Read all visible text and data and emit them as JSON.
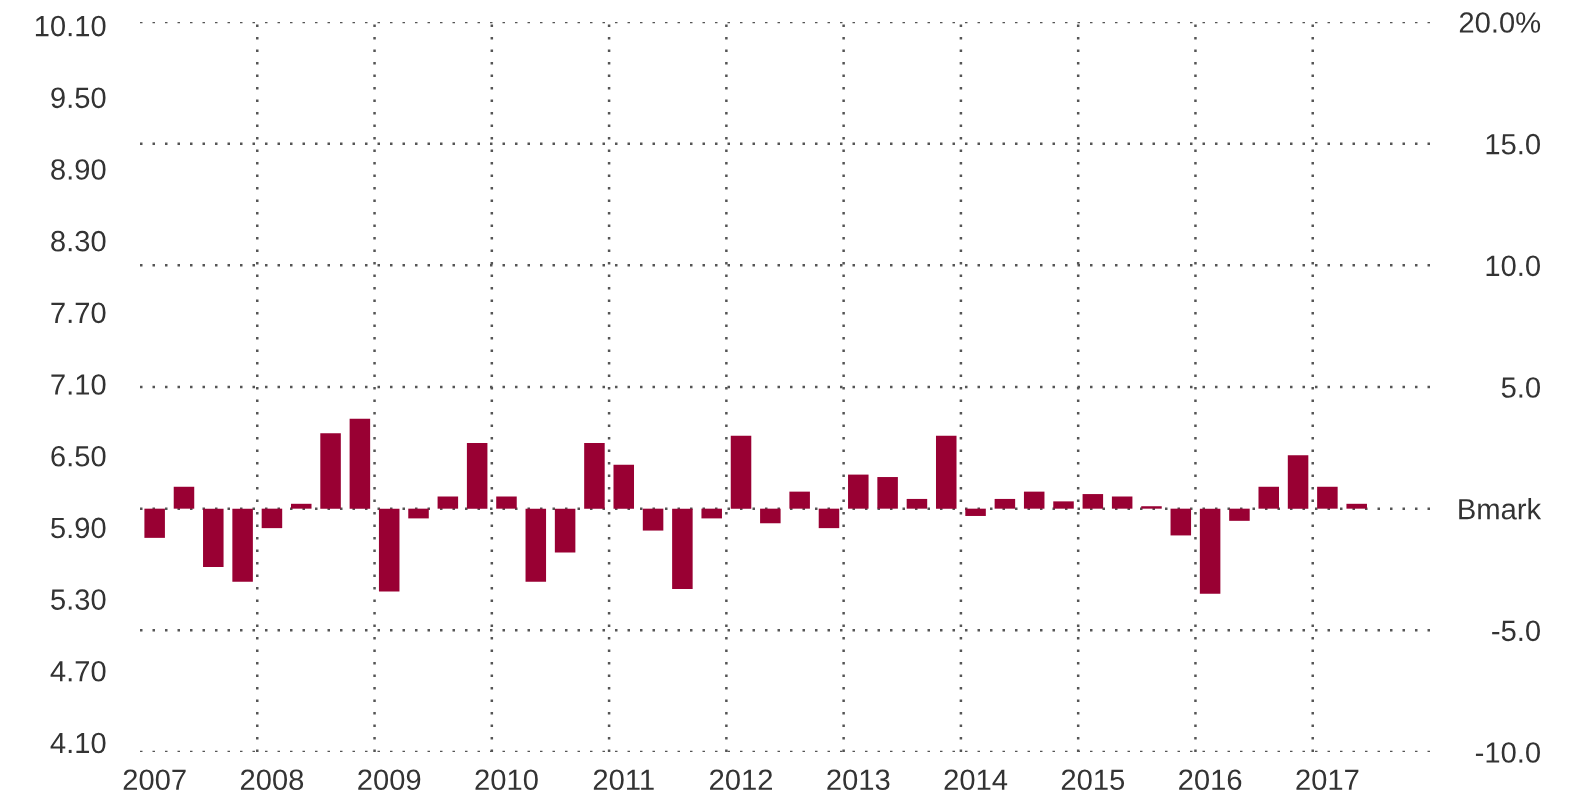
{
  "chart_data": {
    "type": "bar",
    "categories": [
      "2007",
      null,
      null,
      null,
      "2008",
      null,
      null,
      null,
      "2009",
      null,
      null,
      null,
      "2010",
      null,
      null,
      null,
      "2011",
      null,
      null,
      null,
      "2012",
      null,
      null,
      null,
      "2013",
      null,
      null,
      null,
      "2014",
      null,
      null,
      null,
      "2015",
      null,
      null,
      null,
      "2016",
      null,
      null,
      null,
      "2017",
      null
    ],
    "series": [
      {
        "color": "#990033",
        "axis": "y2",
        "values": [
          -1.2,
          0.9,
          -2.4,
          -3.0,
          -0.8,
          0.2,
          3.1,
          3.7,
          -3.4,
          -0.4,
          0.5,
          2.7,
          0.5,
          -3.0,
          -1.8,
          2.7,
          1.8,
          -0.9,
          -3.3,
          -0.4,
          3.0,
          -0.6,
          0.7,
          -0.8,
          1.4,
          1.3,
          0.4,
          3.0,
          -0.3,
          0.4,
          0.7,
          0.3,
          0.6,
          0.5,
          0.1,
          -1.1,
          -3.5,
          -0.5,
          0.9,
          2.2,
          0.9,
          0.2
        ]
      }
    ],
    "ylim": [
      4.02,
      10.13
    ],
    "yticks": [
      {
        "value": 4.1,
        "label": "4.10"
      },
      {
        "value": 4.7,
        "label": "4.70"
      },
      {
        "value": 5.3,
        "label": "5.30"
      },
      {
        "value": 5.9,
        "label": "5.90"
      },
      {
        "value": 6.5,
        "label": "6.50"
      },
      {
        "value": 7.1,
        "label": "7.10"
      },
      {
        "value": 7.7,
        "label": "7.70"
      },
      {
        "value": 8.3,
        "label": "8.30"
      },
      {
        "value": 8.9,
        "label": "8.90"
      },
      {
        "value": 9.5,
        "label": "9.50"
      },
      {
        "value": 10.1,
        "label": "10.10"
      }
    ],
    "y2lim": [
      -10,
      20
    ],
    "y2ticks": [
      {
        "value": -10,
        "label": "-10.0"
      },
      {
        "value": -5,
        "label": "-5.0"
      },
      {
        "value": 0,
        "label": "Bmark"
      },
      {
        "value": 5,
        "label": "5.0"
      },
      {
        "value": 10,
        "label": "10.0"
      },
      {
        "value": 15,
        "label": "15.0"
      },
      {
        "value": 20,
        "label": "20.0%"
      }
    ],
    "grid": true
  }
}
